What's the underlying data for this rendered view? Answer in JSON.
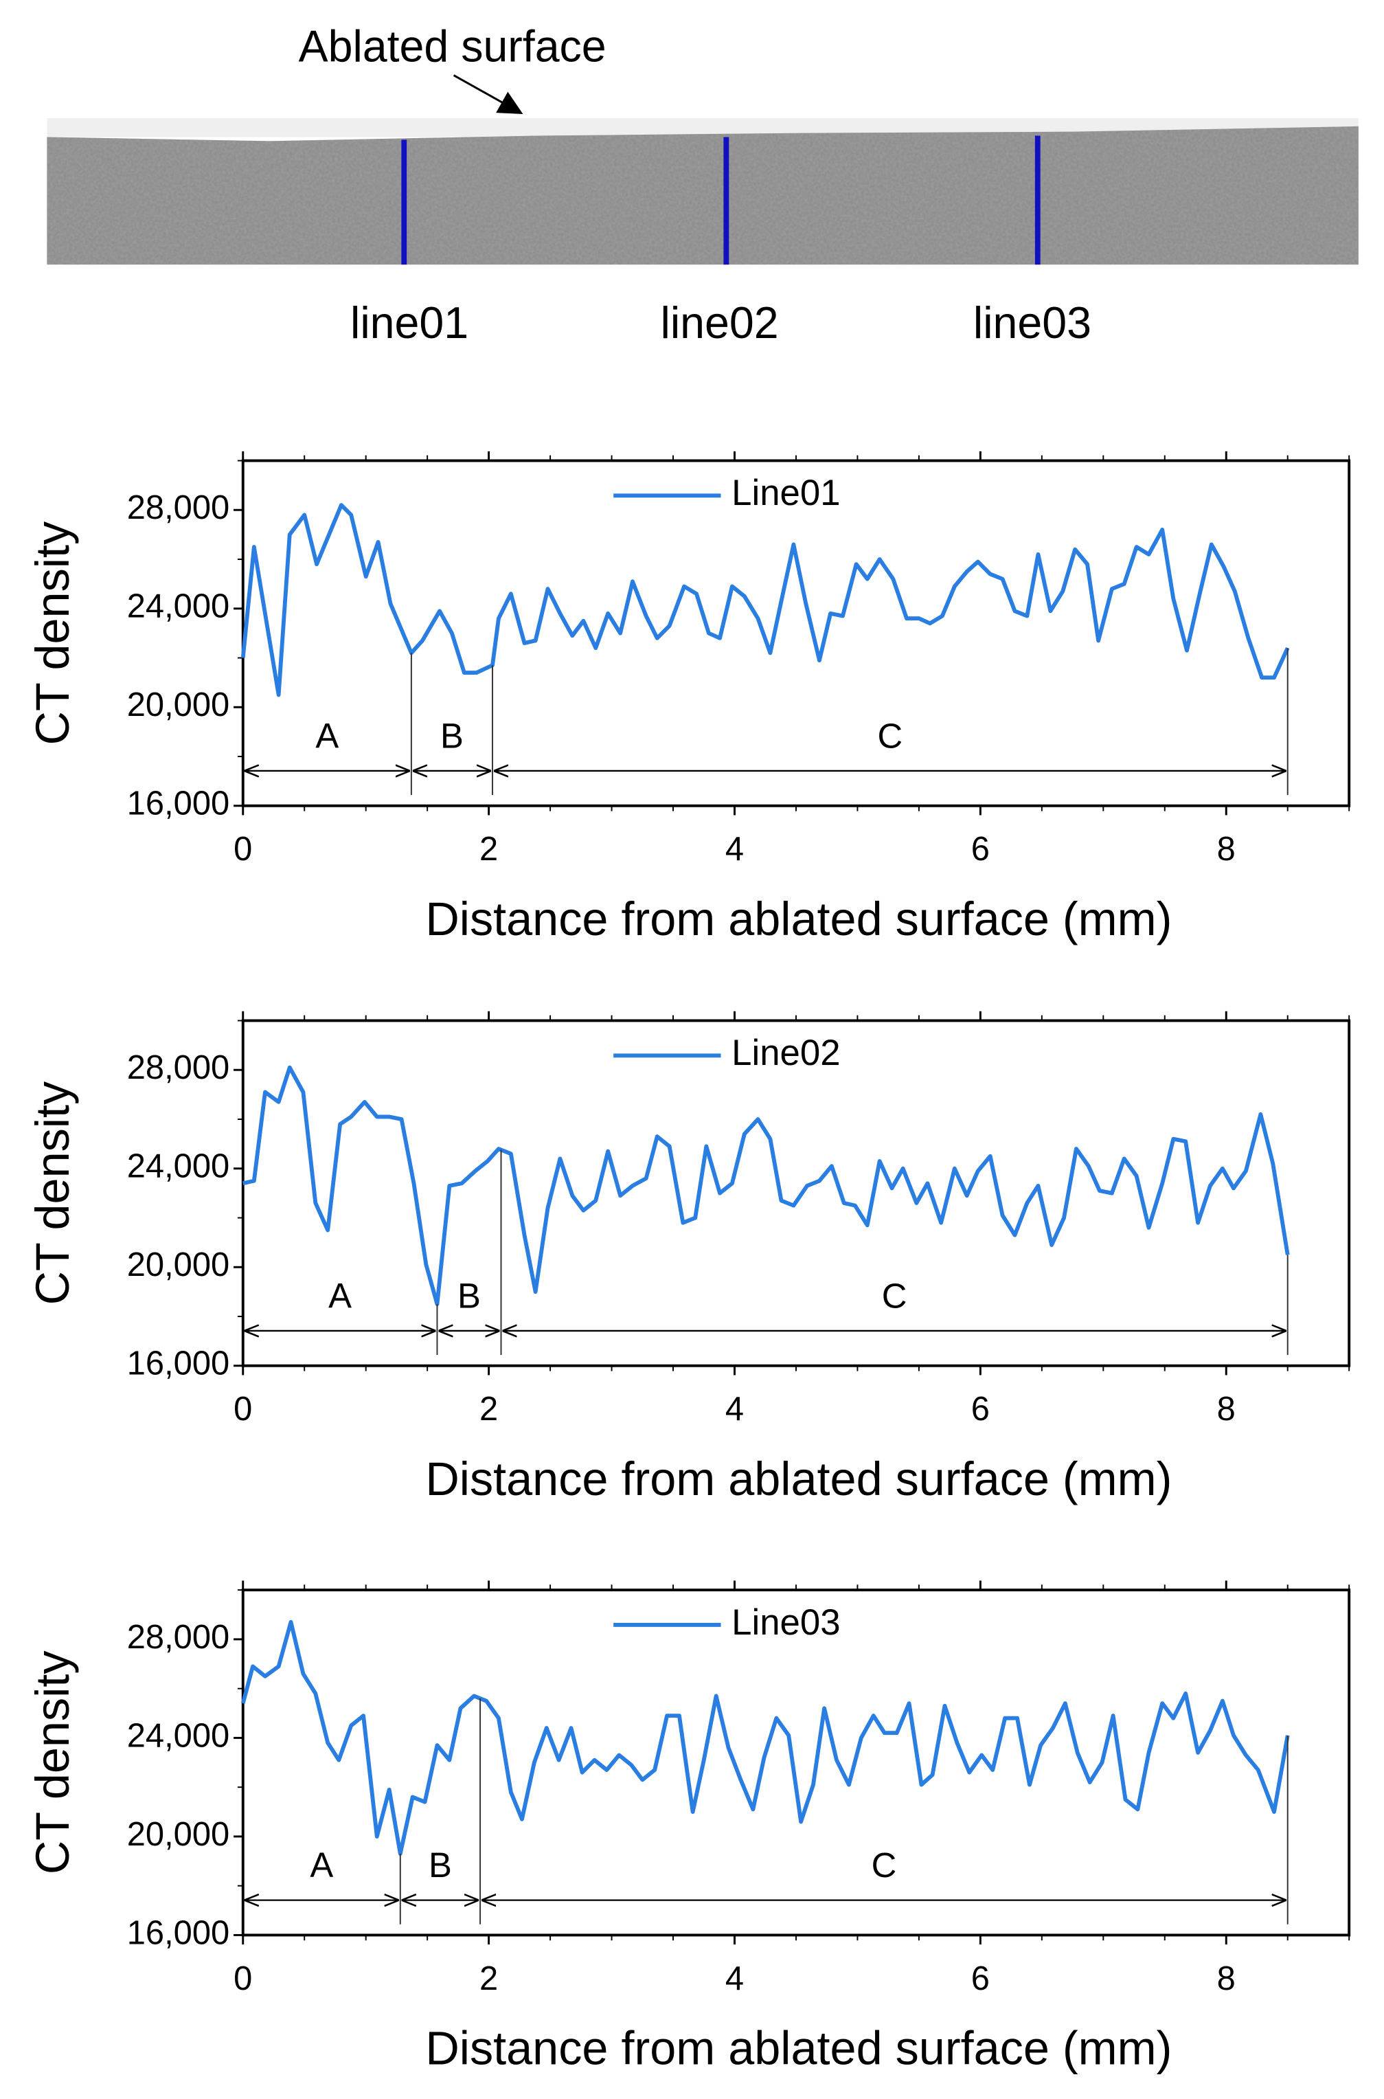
{
  "header": {
    "annotation": "Ablated surface",
    "lines": [
      "line01",
      "line02",
      "line03"
    ]
  },
  "chart_data": [
    {
      "type": "line",
      "x_label": "Distance from ablated surface (mm)",
      "y_label": "CT density",
      "xlim": [
        0,
        9
      ],
      "xticks": [
        0,
        2,
        4,
        6,
        8
      ],
      "ylim": [
        16000,
        30000
      ],
      "yticks": [
        {
          "value": 16000,
          "label": "16,000"
        },
        {
          "value": 20000,
          "label": "20,000"
        },
        {
          "value": 24000,
          "label": "24,000"
        },
        {
          "value": 28000,
          "label": "28,000"
        }
      ],
      "legend": "top",
      "x": [
        0,
        0.09,
        0.29,
        0.38,
        0.5,
        0.6,
        0.8,
        0.88,
        1.0,
        1.1,
        1.2,
        1.37,
        1.46,
        1.6,
        1.7,
        1.8,
        1.9,
        2.03,
        2.08,
        2.18,
        2.29,
        2.38,
        2.48,
        2.58,
        2.68,
        2.77,
        2.87,
        2.97,
        3.07,
        3.17,
        3.28,
        3.37,
        3.47,
        3.59,
        3.69,
        3.79,
        3.88,
        3.98,
        4.08,
        4.19,
        4.29,
        4.38,
        4.48,
        4.58,
        4.69,
        4.78,
        4.88,
        4.99,
        5.08,
        5.18,
        5.29,
        5.4,
        5.5,
        5.59,
        5.69,
        5.79,
        5.89,
        5.98,
        6.08,
        6.18,
        6.28,
        6.38,
        6.47,
        6.57,
        6.67,
        6.77,
        6.87,
        6.96,
        7.07,
        7.17,
        7.27,
        7.37,
        7.48,
        7.57,
        7.68,
        7.78,
        7.88,
        7.98,
        8.07,
        8.18,
        8.29,
        8.39,
        8.5
      ],
      "series": [
        {
          "name": "Line01",
          "color": "#2a7de1",
          "values": [
            22000,
            26500,
            20500,
            27000,
            27800,
            25800,
            28200,
            27800,
            25300,
            26700,
            24200,
            22200,
            22700,
            23900,
            23000,
            21400,
            21400,
            21700,
            23600,
            24600,
            22600,
            22700,
            24800,
            23800,
            22900,
            23500,
            22400,
            23800,
            23000,
            25100,
            23700,
            22800,
            23300,
            24900,
            24600,
            23000,
            22800,
            24900,
            24500,
            23600,
            22200,
            24300,
            26600,
            24200,
            21900,
            23800,
            23700,
            25800,
            25200,
            26000,
            25200,
            23600,
            23600,
            23400,
            23700,
            24900,
            25500,
            25900,
            25400,
            25200,
            23900,
            23700,
            26200,
            23900,
            24700,
            26400,
            25800,
            22700,
            24800,
            25000,
            26500,
            26200,
            27200,
            24400,
            22300,
            24500,
            26600,
            25700,
            24700,
            22800,
            21200,
            21200,
            22400
          ]
        }
      ],
      "regions": [
        {
          "label": "A",
          "start": 0,
          "end": 1.37
        },
        {
          "label": "B",
          "start": 1.37,
          "end": 2.03
        },
        {
          "label": "C",
          "start": 2.03,
          "end": 8.5
        }
      ]
    },
    {
      "type": "line",
      "x_label": "Distance from ablated surface (mm)",
      "y_label": "CT density",
      "xlim": [
        0,
        9
      ],
      "xticks": [
        0,
        2,
        4,
        6,
        8
      ],
      "ylim": [
        16000,
        30000
      ],
      "yticks": [
        {
          "value": 16000,
          "label": "16,000"
        },
        {
          "value": 20000,
          "label": "20,000"
        },
        {
          "value": 24000,
          "label": "24,000"
        },
        {
          "value": 28000,
          "label": "28,000"
        }
      ],
      "legend": "top",
      "x": [
        0,
        0.09,
        0.18,
        0.29,
        0.38,
        0.49,
        0.59,
        0.69,
        0.79,
        0.88,
        0.99,
        1.09,
        1.19,
        1.29,
        1.39,
        1.49,
        1.58,
        1.68,
        1.78,
        1.89,
        1.99,
        2.08,
        2.18,
        2.29,
        2.38,
        2.48,
        2.58,
        2.68,
        2.77,
        2.87,
        2.97,
        3.07,
        3.17,
        3.28,
        3.37,
        3.47,
        3.58,
        3.68,
        3.77,
        3.88,
        3.98,
        4.08,
        4.19,
        4.29,
        4.38,
        4.48,
        4.59,
        4.69,
        4.79,
        4.89,
        4.98,
        5.08,
        5.18,
        5.28,
        5.37,
        5.48,
        5.57,
        5.68,
        5.79,
        5.89,
        5.98,
        6.08,
        6.18,
        6.28,
        6.38,
        6.47,
        6.58,
        6.68,
        6.78,
        6.88,
        6.97,
        7.07,
        7.17,
        7.27,
        7.37,
        7.48,
        7.57,
        7.67,
        7.77,
        7.87,
        7.97,
        8.06,
        8.16,
        8.28,
        8.38,
        8.5
      ],
      "series": [
        {
          "name": "Line02",
          "color": "#2a7de1",
          "values": [
            23400,
            23500,
            27100,
            26700,
            28100,
            27100,
            22600,
            21500,
            25800,
            26100,
            26700,
            26100,
            26100,
            26000,
            23400,
            20100,
            18500,
            23300,
            23400,
            23900,
            24300,
            24800,
            24600,
            21300,
            19000,
            22400,
            24400,
            22900,
            22300,
            22700,
            24700,
            22900,
            23300,
            23600,
            25300,
            24900,
            21800,
            22000,
            24900,
            23000,
            23400,
            25400,
            26000,
            25200,
            22700,
            22500,
            23300,
            23500,
            24100,
            22600,
            22500,
            21700,
            24300,
            23200,
            24000,
            22600,
            23400,
            21800,
            24000,
            22900,
            23900,
            24500,
            22100,
            21300,
            22600,
            23300,
            20900,
            22000,
            24800,
            24100,
            23100,
            23000,
            24400,
            23700,
            21600,
            23400,
            25200,
            25100,
            21800,
            23300,
            24000,
            23200,
            23900,
            26200,
            24200,
            20500
          ]
        }
      ],
      "regions": [
        {
          "label": "A",
          "start": 0,
          "end": 1.58
        },
        {
          "label": "B",
          "start": 1.58,
          "end": 2.1
        },
        {
          "label": "C",
          "start": 2.1,
          "end": 8.5
        }
      ]
    },
    {
      "type": "line",
      "x_label": "Distance from ablated surface (mm)",
      "y_label": "CT density",
      "xlim": [
        0,
        9
      ],
      "xticks": [
        0,
        2,
        4,
        6,
        8
      ],
      "ylim": [
        16000,
        30000
      ],
      "yticks": [
        {
          "value": 16000,
          "label": "16,000"
        },
        {
          "value": 20000,
          "label": "20,000"
        },
        {
          "value": 24000,
          "label": "24,000"
        },
        {
          "value": 28000,
          "label": "28,000"
        }
      ],
      "legend": "top",
      "x": [
        0,
        0.08,
        0.18,
        0.29,
        0.39,
        0.49,
        0.59,
        0.69,
        0.78,
        0.88,
        0.98,
        1.09,
        1.19,
        1.28,
        1.38,
        1.48,
        1.58,
        1.68,
        1.77,
        1.88,
        1.98,
        2.08,
        2.18,
        2.27,
        2.37,
        2.47,
        2.57,
        2.67,
        2.76,
        2.86,
        2.96,
        3.06,
        3.16,
        3.25,
        3.35,
        3.45,
        3.55,
        3.66,
        3.75,
        3.85,
        3.95,
        4.05,
        4.15,
        4.24,
        4.34,
        4.44,
        4.54,
        4.64,
        4.73,
        4.83,
        4.93,
        5.03,
        5.13,
        5.22,
        5.32,
        5.42,
        5.52,
        5.61,
        5.71,
        5.81,
        5.91,
        6.01,
        6.1,
        6.2,
        6.3,
        6.4,
        6.49,
        6.59,
        6.69,
        6.79,
        6.89,
        6.99,
        7.08,
        7.18,
        7.28,
        7.37,
        7.48,
        7.57,
        7.67,
        7.77,
        7.87,
        7.97,
        8.06,
        8.16,
        8.26,
        8.39,
        8.5
      ],
      "series": [
        {
          "name": "Line03",
          "color": "#2a7de1",
          "values": [
            25400,
            26900,
            26500,
            26900,
            28700,
            26600,
            25800,
            23800,
            23100,
            24500,
            24900,
            20000,
            21900,
            19300,
            21600,
            21400,
            23700,
            23100,
            25200,
            25700,
            25500,
            24800,
            21800,
            20700,
            23000,
            24400,
            23100,
            24400,
            22600,
            23100,
            22700,
            23300,
            22900,
            22300,
            22700,
            24900,
            24900,
            21000,
            23100,
            25700,
            23600,
            22300,
            21100,
            23200,
            24800,
            24100,
            20600,
            22100,
            25200,
            23100,
            22100,
            24000,
            24900,
            24200,
            24200,
            25400,
            22100,
            22500,
            25300,
            23800,
            22600,
            23300,
            22700,
            24800,
            24800,
            22100,
            23700,
            24400,
            25400,
            23400,
            22200,
            23000,
            24900,
            21500,
            21100,
            23400,
            25400,
            24800,
            25800,
            23400,
            24300,
            25500,
            24100,
            23300,
            22700,
            21000,
            24100
          ]
        }
      ],
      "regions": [
        {
          "label": "A",
          "start": 0,
          "end": 1.28
        },
        {
          "label": "B",
          "start": 1.28,
          "end": 1.93
        },
        {
          "label": "C",
          "start": 1.93,
          "end": 8.5
        }
      ]
    }
  ]
}
